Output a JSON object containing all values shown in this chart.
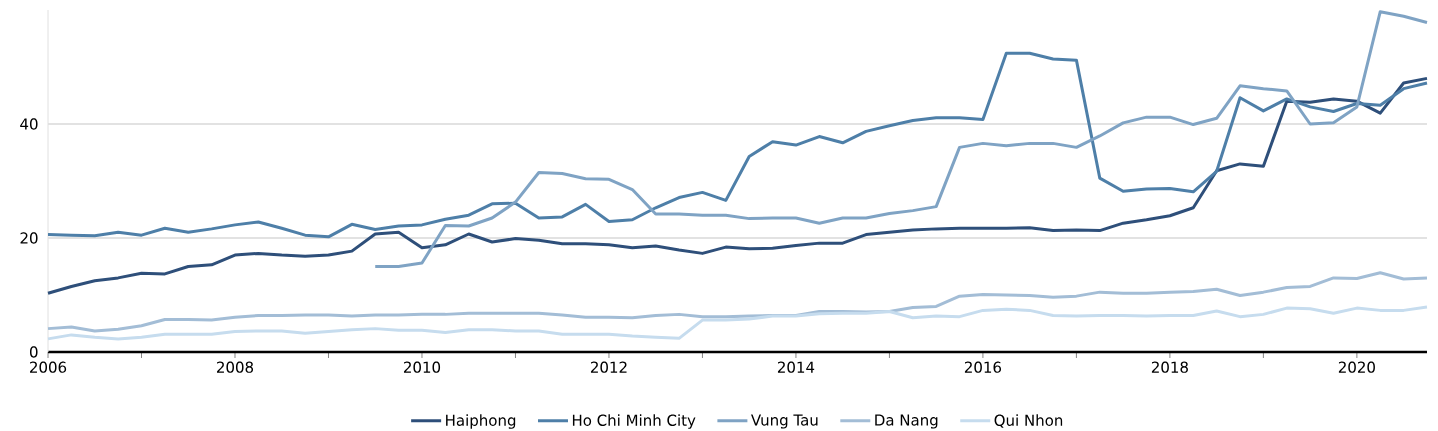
{
  "chart_data": {
    "type": "line",
    "x": [
      2006,
      2006.25,
      2006.5,
      2006.75,
      2007,
      2007.25,
      2007.5,
      2007.75,
      2008,
      2008.25,
      2008.5,
      2008.75,
      2009,
      2009.25,
      2009.5,
      2009.75,
      2010,
      2010.25,
      2010.5,
      2010.75,
      2011,
      2011.25,
      2011.5,
      2011.75,
      2012,
      2012.25,
      2012.5,
      2012.75,
      2013,
      2013.25,
      2013.5,
      2013.75,
      2014,
      2014.25,
      2014.5,
      2014.75,
      2015,
      2015.25,
      2015.5,
      2015.75,
      2016,
      2016.25,
      2016.5,
      2016.75,
      2017,
      2017.25,
      2017.5,
      2017.75,
      2018,
      2018.25,
      2018.5,
      2018.75,
      2019,
      2019.25,
      2019.5,
      2019.75,
      2020,
      2020.25,
      2020.5,
      2020.75
    ],
    "series": [
      {
        "name": "Haiphong",
        "color": "#2e4f7a",
        "values": [
          10.3,
          11.5,
          12.5,
          13.0,
          13.8,
          13.7,
          15.0,
          15.3,
          17.0,
          17.3,
          17.0,
          16.8,
          17.0,
          17.7,
          20.7,
          21.0,
          18.3,
          18.8,
          20.7,
          19.3,
          19.9,
          19.6,
          19.0,
          19.0,
          18.8,
          18.3,
          18.6,
          17.9,
          17.3,
          18.4,
          18.1,
          18.2,
          18.7,
          19.1,
          19.1,
          20.6,
          21.0,
          21.4,
          21.6,
          21.7,
          21.7,
          21.7,
          21.8,
          21.3,
          21.4,
          21.3,
          22.6,
          23.2,
          23.9,
          25.3,
          31.8,
          33.0,
          32.6,
          44.0,
          43.8,
          44.4,
          44.0,
          41.9,
          47.2,
          48.0
        ]
      },
      {
        "name": "Ho Chi Minh City",
        "color": "#4e7fa8",
        "values": [
          20.6,
          20.5,
          20.4,
          21.0,
          20.5,
          21.7,
          21.0,
          21.6,
          22.3,
          22.8,
          21.7,
          20.5,
          20.2,
          22.4,
          21.5,
          22.1,
          22.3,
          23.3,
          24.0,
          26.0,
          26.1,
          23.5,
          23.7,
          25.9,
          22.9,
          23.2,
          25.3,
          27.1,
          28.0,
          26.6,
          34.3,
          36.9,
          36.3,
          37.8,
          36.7,
          38.7,
          39.7,
          40.6,
          41.1,
          41.1,
          40.8,
          52.4,
          52.4,
          51.4,
          51.2,
          30.5,
          28.2,
          28.6,
          28.7,
          28.1,
          31.7,
          44.6,
          42.3,
          44.4,
          43.0,
          42.2,
          43.6,
          43.3,
          46.2,
          47.2
        ]
      },
      {
        "name": "Vung Tau",
        "color": "#7fa3c4",
        "values": [
          null,
          null,
          null,
          null,
          null,
          null,
          null,
          null,
          null,
          null,
          null,
          null,
          null,
          null,
          15.0,
          15.0,
          15.6,
          22.2,
          22.1,
          23.5,
          26.3,
          31.5,
          31.3,
          30.4,
          30.3,
          28.5,
          24.2,
          24.2,
          24.0,
          24.0,
          23.4,
          23.5,
          23.5,
          22.6,
          23.5,
          23.5,
          24.3,
          24.8,
          25.5,
          35.9,
          36.6,
          36.2,
          36.6,
          36.6,
          35.9,
          37.9,
          40.2,
          41.2,
          41.2,
          39.9,
          41.0,
          46.7,
          46.2,
          45.8,
          40.0,
          40.2,
          43.0,
          59.7,
          58.9,
          57.8
        ]
      },
      {
        "name": "Da Nang",
        "color": "#a3bdd6",
        "values": [
          4.1,
          4.4,
          3.7,
          4.0,
          4.6,
          5.7,
          5.7,
          5.6,
          6.1,
          6.4,
          6.4,
          6.5,
          6.5,
          6.3,
          6.5,
          6.5,
          6.6,
          6.6,
          6.8,
          6.8,
          6.8,
          6.8,
          6.5,
          6.1,
          6.1,
          6.0,
          6.4,
          6.6,
          6.2,
          6.2,
          6.3,
          6.4,
          6.4,
          7.1,
          7.1,
          7.0,
          7.1,
          7.8,
          8.0,
          9.8,
          10.1,
          10.0,
          9.9,
          9.6,
          9.8,
          10.5,
          10.3,
          10.3,
          10.5,
          10.6,
          11.0,
          9.9,
          10.5,
          11.3,
          11.5,
          13.0,
          12.9,
          13.9,
          12.8,
          13.0
        ]
      },
      {
        "name": "Qui Nhon",
        "color": "#c6dcee",
        "values": [
          2.3,
          3.0,
          2.6,
          2.3,
          2.6,
          3.1,
          3.1,
          3.1,
          3.6,
          3.7,
          3.7,
          3.3,
          3.6,
          3.9,
          4.1,
          3.8,
          3.8,
          3.4,
          3.9,
          3.9,
          3.7,
          3.7,
          3.1,
          3.1,
          3.1,
          2.8,
          2.6,
          2.4,
          5.6,
          5.6,
          5.8,
          6.3,
          6.3,
          6.7,
          6.8,
          6.8,
          7.1,
          6.0,
          6.3,
          6.2,
          7.3,
          7.5,
          7.3,
          6.4,
          6.3,
          6.4,
          6.4,
          6.3,
          6.4,
          6.4,
          7.2,
          6.2,
          6.6,
          7.7,
          7.6,
          6.8,
          7.7,
          7.3,
          7.3,
          7.9
        ]
      }
    ],
    "xlim": [
      2006,
      2020.75
    ],
    "xticks": [
      2006,
      {
        "value": 2007,
        "label": null
      },
      2008,
      {
        "value": 2009,
        "label": null
      },
      2010,
      {
        "value": 2011,
        "label": null
      },
      2012,
      {
        "value": 2013,
        "label": null
      },
      2014,
      {
        "value": 2015,
        "label": null
      },
      2016,
      {
        "value": 2017,
        "label": null
      },
      2018,
      {
        "value": 2019,
        "label": null
      },
      2020
    ],
    "ylim": [
      0,
      60
    ],
    "yticks": [
      0,
      20,
      40
    ],
    "grid": "y",
    "legend": "bottom",
    "marker": "none",
    "line_style": "solid"
  }
}
